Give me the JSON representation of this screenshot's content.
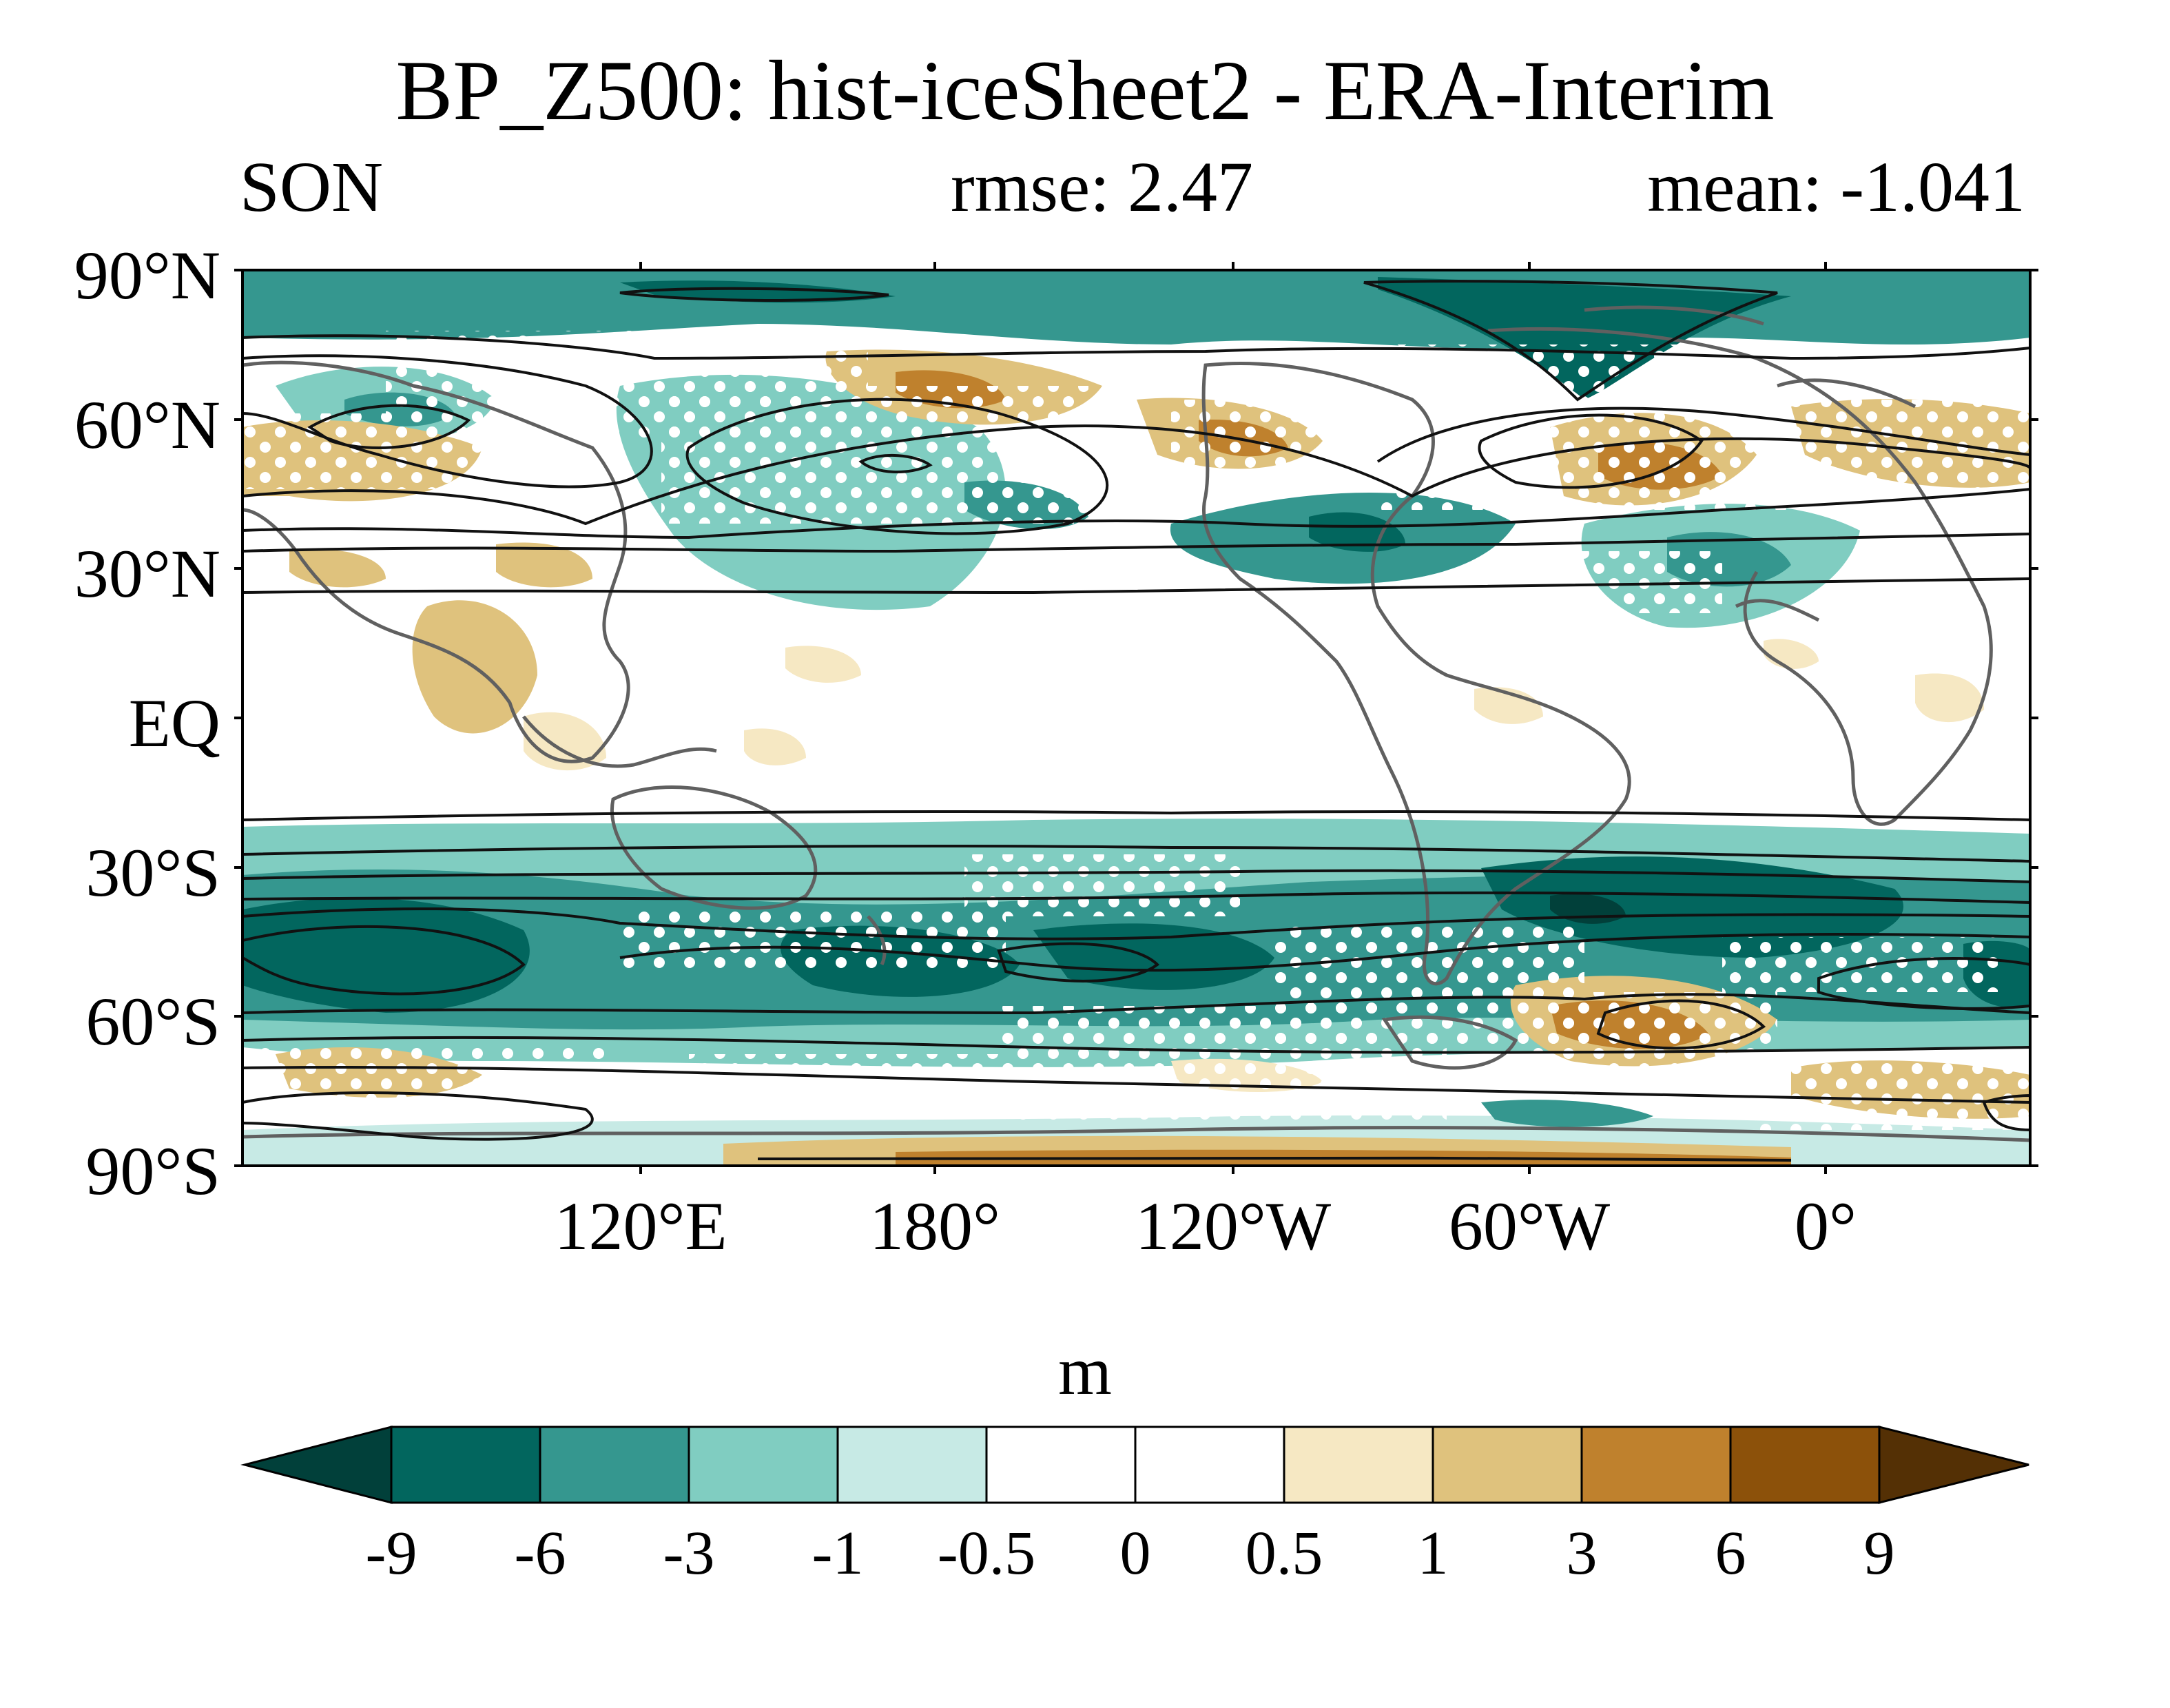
{
  "title": "BP_Z500: hist-iceSheet2 - ERA-Interim",
  "season": "SON",
  "rmse_text": "rmse: 2.47",
  "mean_text": "mean: -1.041",
  "lat_labels": [
    "90°N",
    "60°N",
    "30°N",
    "EQ",
    "30°S",
    "60°S",
    "90°S"
  ],
  "lon_labels": [
    "120°E",
    "180°",
    "120°W",
    "60°W",
    "0°"
  ],
  "colorbar": {
    "units": "m",
    "levels": [
      "-9",
      "-6",
      "-3",
      "-1",
      "-0.5",
      "0",
      "0.5",
      "1",
      "3",
      "6",
      "9"
    ],
    "colors": [
      "#01403a",
      "#02665e",
      "#35978f",
      "#80cdc1",
      "#c7eae5",
      "#ffffff",
      "#ffffff",
      "#f6e8c3",
      "#dfc27d",
      "#bf812d",
      "#8c510a",
      "#543005"
    ]
  },
  "chart_data": {
    "type": "heatmap",
    "variable": "BP_Z500",
    "experiment": "hist-iceSheet2",
    "reference": "ERA-Interim",
    "season": "SON",
    "rmse": 2.47,
    "mean": -1.041,
    "units": "m",
    "lat_range": [
      -90,
      90
    ],
    "lon_range": [
      30,
      390
    ],
    "yticks": [
      90,
      60,
      30,
      0,
      -30,
      -60,
      -90
    ],
    "xticks": [
      120,
      180,
      240,
      300,
      360
    ]
  }
}
